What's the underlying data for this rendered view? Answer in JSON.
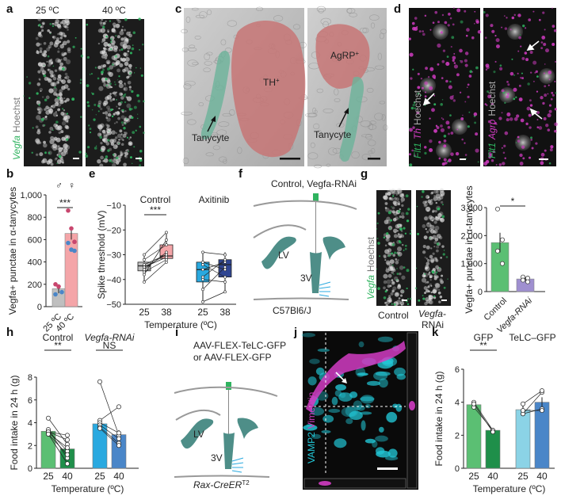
{
  "panel_letters": [
    "a",
    "b",
    "c",
    "d",
    "e",
    "f",
    "g",
    "h",
    "i",
    "j",
    "k"
  ],
  "colors": {
    "green": "#2fb35f",
    "pink": "#e8787e",
    "magenta": "#d23cc3",
    "cyan": "#22c7d6",
    "blue": "#3b5bb5",
    "teal": "#4e8e88",
    "sky": "#29a9e0",
    "navy": "#2f4592",
    "lightgray": "#bfbfbf",
    "salmon": "#f4a5a8",
    "darkgreen": "#1f8f4a",
    "lightgreen": "#5bbf73",
    "lightsky": "#8bd3e6",
    "midblue": "#4a86c8"
  },
  "a": {
    "temp1": "25 ºC",
    "temp2": "40 ºC",
    "stain_gene": "Vegfa",
    "stain_nuc": "Hoechst"
  },
  "c": {
    "label_th": "TH",
    "label_agrp": "AgRP",
    "sup": "+",
    "tanycyte": "Tanycyte"
  },
  "d": {
    "p1_gene1": "Flt1",
    "p1_gene2": "Th",
    "p1_nuc": "Hoechst",
    "p2_gene1": "Flt1",
    "p2_gene2": "Agrp",
    "p2_nuc": "Hoechst"
  },
  "f": {
    "title": "Control, Vegfa-RNAi",
    "title_gene": "Vegfa",
    "lv": "LV",
    "v3": "3V",
    "strain": "C57Bl6/J"
  },
  "g_images": {
    "stain_gene": "Vegfa",
    "stain_nuc": "Hoechst",
    "label1": "Control",
    "label2a": "Vegfa-",
    "label2b": "RNAi"
  },
  "i": {
    "line1": "AAV-FLEX-TeLC-GFP",
    "line2": "or AAV-FLEX-GFP",
    "lv": "LV",
    "v3": "3V",
    "driver": "Rax-CreER",
    "driver_sup": "T2"
  },
  "j": {
    "ch1": "VAMP2",
    "ch2": "Vimentin"
  },
  "chart_data": [
    {
      "panel": "b",
      "type": "bar",
      "categories": [
        "25 ºC",
        "40 ºC"
      ],
      "values": [
        160,
        655
      ],
      "error": [
        40,
        55
      ],
      "points": {
        "25 ºC": [
          {
            "v": 200,
            "sex": "m"
          },
          {
            "v": 180,
            "sex": "m"
          },
          {
            "v": 130,
            "sex": "f"
          },
          {
            "v": 110,
            "sex": "f"
          }
        ],
        "40 ºC": [
          {
            "v": 860,
            "sex": "m"
          },
          {
            "v": 700,
            "sex": "m"
          },
          {
            "v": 580,
            "sex": "m"
          },
          {
            "v": 570,
            "sex": "f"
          },
          {
            "v": 510,
            "sex": "f"
          },
          {
            "v": 500,
            "sex": "f"
          }
        ]
      },
      "ylabel": "Vegfa+ punctae in α-tanycytes",
      "ylim": [
        0,
        1000
      ],
      "yticks": [
        "0",
        "200",
        "400",
        "600",
        "800",
        "1,000"
      ],
      "significance": "***"
    },
    {
      "panel": "e",
      "type": "box",
      "groups": [
        "Control",
        "Axitinib"
      ],
      "xticks": [
        "25",
        "38",
        "25",
        "38"
      ],
      "xlabel": "Temperature (ºC)",
      "ylabel": "Spike threshold (mV)",
      "ylim": [
        -50,
        -10
      ],
      "yticks": [
        "−10",
        "−20",
        "−30",
        "−40",
        "−50"
      ],
      "significance": "***",
      "boxes": [
        {
          "group": "Control",
          "temp": "25",
          "min": -41,
          "q1": -36.5,
          "median": -34.5,
          "q3": -33,
          "max": -30
        },
        {
          "group": "Control",
          "temp": "38",
          "min": -33,
          "q1": -31.5,
          "median": -30.5,
          "q3": -26,
          "max": -21
        },
        {
          "group": "Axitinib",
          "temp": "25",
          "min": -49,
          "q1": -41,
          "median": -36,
          "q3": -33,
          "max": -29
        },
        {
          "group": "Axitinib",
          "temp": "38",
          "min": -45,
          "q1": -39,
          "median": -34,
          "q3": -32,
          "max": -29
        }
      ],
      "paired": {
        "Control": [
          [
            -35,
            -31
          ],
          [
            -37,
            -32
          ],
          [
            -34,
            -30
          ],
          [
            -32,
            -26
          ],
          [
            -36,
            -29
          ],
          [
            -41,
            -33
          ],
          [
            -38,
            -24
          ],
          [
            -30,
            -21
          ],
          [
            -35,
            -30
          ]
        ],
        "Axitinib": [
          [
            -33,
            -36
          ],
          [
            -39,
            -32
          ],
          [
            -29,
            -30
          ],
          [
            -44,
            -35
          ],
          [
            -36,
            -33
          ],
          [
            -49,
            -45
          ],
          [
            -34,
            -39
          ],
          [
            -40,
            -41
          ]
        ]
      }
    },
    {
      "panel": "g",
      "type": "bar",
      "categories": [
        "Control",
        "Vegfa-RNAi"
      ],
      "values": [
        1750,
        450
      ],
      "error": [
        350,
        60
      ],
      "points": {
        "Control": [
          2950,
          1850,
          1450,
          1000
        ],
        "Vegfa-RNAi": [
          520,
          480,
          410,
          350
        ]
      },
      "ylabel": "Vegfa+ punctae in α-tanycytes",
      "ylim": [
        0,
        3000
      ],
      "yticks": [
        "0",
        "1,000",
        "2,000",
        "3,000"
      ],
      "significance": "*"
    },
    {
      "panel": "h",
      "type": "bar",
      "groups": [
        "Control",
        "Vegfa-RNAi"
      ],
      "categories": [
        "25",
        "40",
        "25",
        "40"
      ],
      "values": [
        3.25,
        1.7,
        3.9,
        2.95
      ],
      "error": [
        0.25,
        0.4,
        0.45,
        0.4
      ],
      "paired": {
        "Control": [
          [
            4.4,
            2.1
          ],
          [
            3.3,
            1.5
          ],
          [
            3.2,
            2.9
          ],
          [
            3.1,
            1.8
          ],
          [
            3.0,
            0.4
          ],
          [
            3.4,
            0.9
          ],
          [
            3.2,
            2.5
          ],
          [
            3.0,
            1.2
          ]
        ],
        "Vegfa-RNAi": [
          [
            7.6,
            2.9
          ],
          [
            4.2,
            5.4
          ],
          [
            4.0,
            3.1
          ],
          [
            3.8,
            2.6
          ],
          [
            3.6,
            2.2
          ],
          [
            3.5,
            2.0
          ]
        ]
      },
      "xlabel": "Temperature (ºC)",
      "ylabel": "Food intake in 24 h (g)",
      "ylim": [
        0,
        8
      ],
      "yticks": [
        "0",
        "2",
        "4",
        "6",
        "8"
      ],
      "significance": [
        "**",
        "NS"
      ]
    },
    {
      "panel": "k",
      "type": "bar",
      "groups": [
        "GFP",
        "TeLC–GFP"
      ],
      "categories": [
        "25",
        "40",
        "25",
        "40"
      ],
      "values": [
        3.85,
        2.3,
        3.55,
        4.0
      ],
      "error": [
        0.2,
        0.05,
        0.25,
        0.3
      ],
      "paired": {
        "GFP": [
          [
            4.0,
            2.3
          ],
          [
            3.7,
            2.3
          ],
          [
            3.9,
            2.2
          ]
        ],
        "TeLC–GFP": [
          [
            3.3,
            4.6
          ],
          [
            3.9,
            4.7
          ],
          [
            3.3,
            3.6
          ],
          [
            3.5,
            3.5
          ]
        ]
      },
      "xlabel": "Temperature (ºC)",
      "ylabel": "Food intake in 24 h (g)",
      "ylim": [
        0,
        6
      ],
      "yticks": [
        "0",
        "2",
        "4",
        "6"
      ],
      "significance": "**"
    }
  ]
}
